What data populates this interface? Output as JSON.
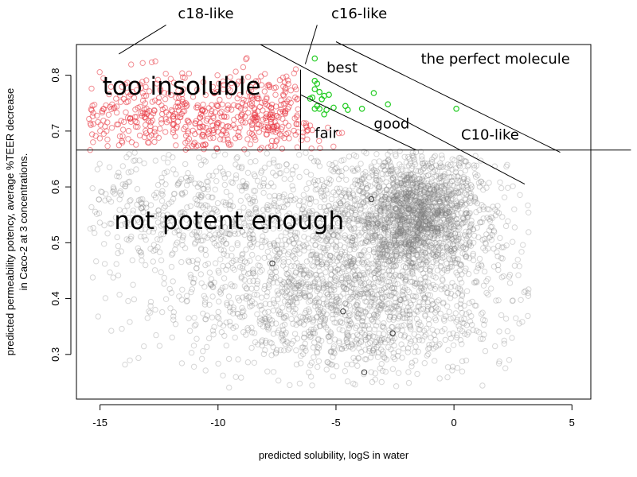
{
  "chart_data": {
    "type": "scatter",
    "xlabel": "predicted solubility, logS in water",
    "ylabel_line1": "predicted permeability potency, average %TEER decrease",
    "ylabel_line2": "in Caco-2 at 3 concentrations.",
    "xlim": [
      -16,
      5.8
    ],
    "ylim": [
      0.22,
      0.855
    ],
    "x_ticks": [
      -15,
      -10,
      -5,
      0,
      5
    ],
    "y_ticks": [
      0.3,
      0.4,
      0.5,
      0.6,
      0.7,
      0.8
    ],
    "grid": false,
    "colors": {
      "not_potent": "#7a7a7a",
      "insoluble": "#e8323c",
      "best": "#22cc22",
      "line": "#000000"
    },
    "series": [
      {
        "category": "not-potent",
        "clusters": [
          {
            "cx": -1.5,
            "cy": 0.55,
            "sx": 1.3,
            "sy": 0.05,
            "n": 1400
          },
          {
            "cx": -3.5,
            "cy": 0.47,
            "sx": 3.0,
            "sy": 0.1,
            "n": 1400
          },
          {
            "cx": -8.0,
            "cy": 0.5,
            "sx": 3.5,
            "sy": 0.1,
            "n": 700
          },
          {
            "cx": -5.0,
            "cy": 0.36,
            "sx": 3.0,
            "sy": 0.05,
            "n": 450
          },
          {
            "cx": -12.5,
            "cy": 0.58,
            "sx": 2.3,
            "sy": 0.05,
            "n": 200
          }
        ],
        "ymax": 0.665,
        "highlighted": [
          {
            "x": -7.7,
            "y": 0.463
          },
          {
            "x": -3.5,
            "y": 0.578
          },
          {
            "x": -4.7,
            "y": 0.377
          },
          {
            "x": -2.6,
            "y": 0.338
          },
          {
            "x": -3.8,
            "y": 0.268
          }
        ]
      },
      {
        "category": "too-insoluble",
        "clusters": [
          {
            "cx": -11.5,
            "cy": 0.72,
            "sx": 3.3,
            "sy": 0.04,
            "n": 450
          },
          {
            "cx": -7.5,
            "cy": 0.73,
            "sx": 1.0,
            "sy": 0.04,
            "n": 120
          }
        ],
        "ymin": 0.665,
        "xrange_lower_band": [
          -16,
          -4.5
        ],
        "xrange_upper_band": [
          -16,
          -6.5
        ]
      },
      {
        "category": "best-region",
        "points": [
          {
            "x": -5.9,
            "y": 0.83
          },
          {
            "x": -5.9,
            "y": 0.79
          },
          {
            "x": -5.8,
            "y": 0.785
          },
          {
            "x": -5.7,
            "y": 0.77
          },
          {
            "x": -5.5,
            "y": 0.763
          },
          {
            "x": -5.9,
            "y": 0.775
          },
          {
            "x": -6.0,
            "y": 0.76
          },
          {
            "x": -5.6,
            "y": 0.757
          },
          {
            "x": -5.3,
            "y": 0.765
          },
          {
            "x": -5.8,
            "y": 0.745
          },
          {
            "x": -5.9,
            "y": 0.74
          },
          {
            "x": -5.4,
            "y": 0.738
          },
          {
            "x": -5.7,
            "y": 0.74
          },
          {
            "x": -5.1,
            "y": 0.742
          },
          {
            "x": -4.6,
            "y": 0.745
          },
          {
            "x": -4.5,
            "y": 0.738
          },
          {
            "x": -3.9,
            "y": 0.74
          },
          {
            "x": -3.4,
            "y": 0.768
          },
          {
            "x": -2.8,
            "y": 0.748
          },
          {
            "x": 0.1,
            "y": 0.74
          },
          {
            "x": -6.1,
            "y": 0.758
          },
          {
            "x": -5.5,
            "y": 0.73
          }
        ]
      }
    ],
    "lines": [
      {
        "name": "potency-cutoff",
        "x": [
          -16,
          7.5
        ],
        "y": [
          0.666,
          0.666
        ]
      },
      {
        "name": "solubility-cutoff",
        "x": [
          -6.5,
          -6.5
        ],
        "y": [
          0.666,
          0.81
        ]
      },
      {
        "name": "fair-boundary",
        "x": [
          -6.5,
          -1.6
        ],
        "y": [
          0.765,
          0.666
        ]
      },
      {
        "name": "good-boundary",
        "x": [
          -8.2,
          3.0
        ],
        "y": [
          0.855,
          0.605
        ]
      },
      {
        "name": "perfect-boundary",
        "x": [
          -5.0,
          4.5
        ],
        "y": [
          0.86,
          0.662
        ]
      }
    ],
    "annotations": [
      {
        "text": "too insoluble",
        "x": -14.9,
        "y": 0.765,
        "size": "big"
      },
      {
        "text": "not potent enough",
        "x": -14.4,
        "y": 0.525,
        "size": "big"
      },
      {
        "text": "best",
        "x": -5.4,
        "y": 0.805,
        "size": "mid"
      },
      {
        "text": "good",
        "x": -3.4,
        "y": 0.705,
        "size": "mid"
      },
      {
        "text": "fair",
        "x": -5.9,
        "y": 0.688,
        "size": "mid"
      },
      {
        "text": "C10-like",
        "x": 0.3,
        "y": 0.685,
        "size": "mid"
      },
      {
        "text": "the perfect molecule",
        "x": -1.4,
        "y": 0.821,
        "size": "mid"
      }
    ],
    "callouts": [
      {
        "text": "c18-like",
        "text_x": -11.7,
        "text_y": 0.902,
        "from_x": -12.2,
        "from_y": 0.89,
        "to_x": -14.2,
        "to_y": 0.838
      },
      {
        "text": "c16-like",
        "text_x": -5.2,
        "text_y": 0.902,
        "from_x": -5.8,
        "from_y": 0.89,
        "to_x": -6.3,
        "to_y": 0.82
      }
    ]
  }
}
